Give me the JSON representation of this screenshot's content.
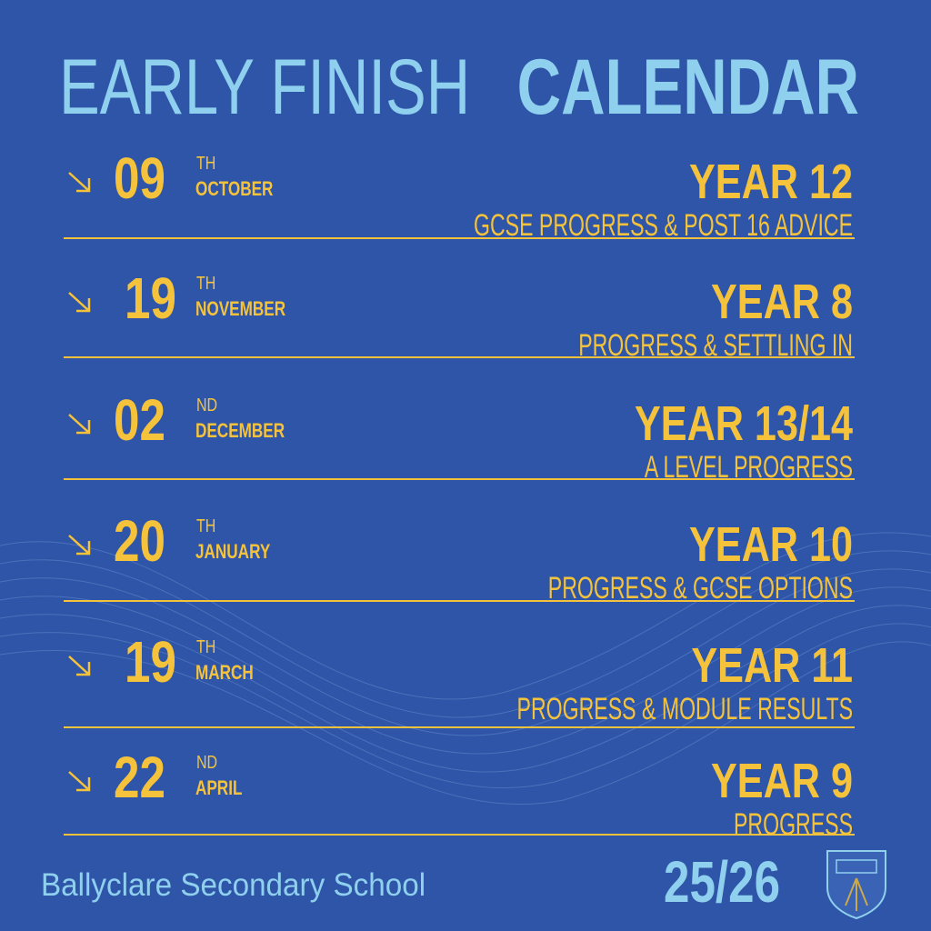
{
  "header": {
    "title_light": "EARLY FINISH",
    "title_bold": "CALENDAR"
  },
  "entries": [
    {
      "day": "09",
      "suffix": "TH",
      "month": "OCTOBER",
      "year": "YEAR 12",
      "description": "GCSE PROGRESS & POST 16  ADVICE"
    },
    {
      "day": "19",
      "suffix": "TH",
      "month": "NOVEMBER",
      "year": "YEAR 8",
      "description": "PROGRESS & SETTLING IN"
    },
    {
      "day": "02",
      "suffix": "ND",
      "month": "DECEMBER",
      "year": "YEAR 13/14",
      "description": "A LEVEL PROGRESS"
    },
    {
      "day": "20",
      "suffix": "TH",
      "month": "JANUARY",
      "year": "YEAR 10",
      "description": "PROGRESS & GCSE OPTIONS"
    },
    {
      "day": "19",
      "suffix": "TH",
      "month": "MARCH",
      "year": "YEAR 11",
      "description": "PROGRESS &  MODULE RESULTS"
    },
    {
      "day": "22",
      "suffix": "ND",
      "month": "APRIL",
      "year": "YEAR 9",
      "description": "PROGRESS"
    }
  ],
  "footer": {
    "school": "Ballyclare Secondary School",
    "session": "25/26"
  }
}
